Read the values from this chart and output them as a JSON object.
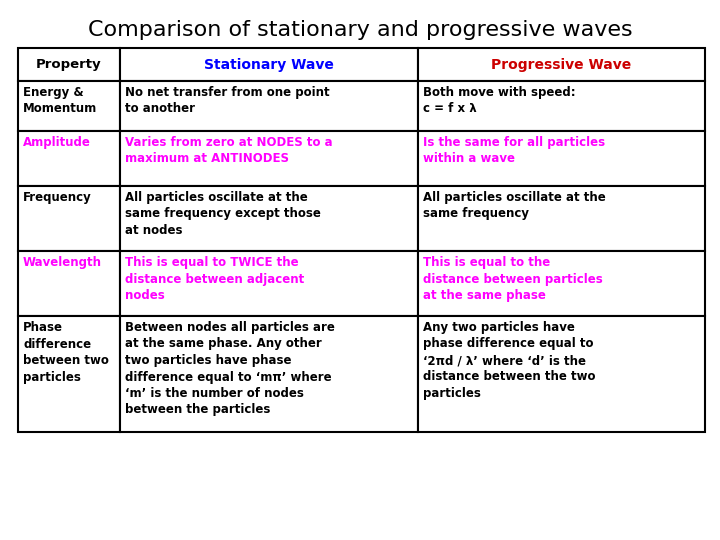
{
  "title": "Comparison of stationary and progressive waves",
  "title_fontsize": 16,
  "title_color": "#000000",
  "background_color": "#ffffff",
  "headers": [
    "Property",
    "Stationary Wave",
    "Progressive Wave"
  ],
  "header_colors": [
    "#000000",
    "#0000ff",
    "#cc0000"
  ],
  "rows": [
    {
      "property": "Energy &\nMomentum",
      "property_color": "#000000",
      "stat": "No net transfer from one point\nto another",
      "stat_color": "#000000",
      "prog": "Both move with speed:\nc = f x λ",
      "prog_color": "#000000"
    },
    {
      "property": "Amplitude",
      "property_color": "#ff00ff",
      "stat": "Varies from zero at NODES to a\nmaximum at ANTINODES",
      "stat_color": "#ff00ff",
      "prog": "Is the same for all particles\nwithin a wave",
      "prog_color": "#ff00ff"
    },
    {
      "property": "Frequency",
      "property_color": "#000000",
      "stat": "All particles oscillate at the\nsame frequency except those\nat nodes",
      "stat_color": "#000000",
      "prog": "All particles oscillate at the\nsame frequency",
      "prog_color": "#000000"
    },
    {
      "property": "Wavelength",
      "property_color": "#ff00ff",
      "stat": "This is equal to TWICE the\ndistance between adjacent\nnodes",
      "stat_color": "#ff00ff",
      "prog": "This is equal to the\ndistance between particles\nat the same phase",
      "prog_color": "#ff00ff"
    },
    {
      "property": "Phase\ndifference\nbetween two\nparticles",
      "property_color": "#000000",
      "stat": "Between nodes all particles are\nat the same phase. Any other\ntwo particles have phase\ndifference equal to ‘mπ’ where\n‘m’ is the number of nodes\nbetween the particles",
      "stat_color": "#000000",
      "prog": "Any two particles have\nphase difference equal to\n‘2πd / λ’ where ‘d’ is the\ndistance between the two\nparticles",
      "prog_color": "#000000"
    }
  ]
}
